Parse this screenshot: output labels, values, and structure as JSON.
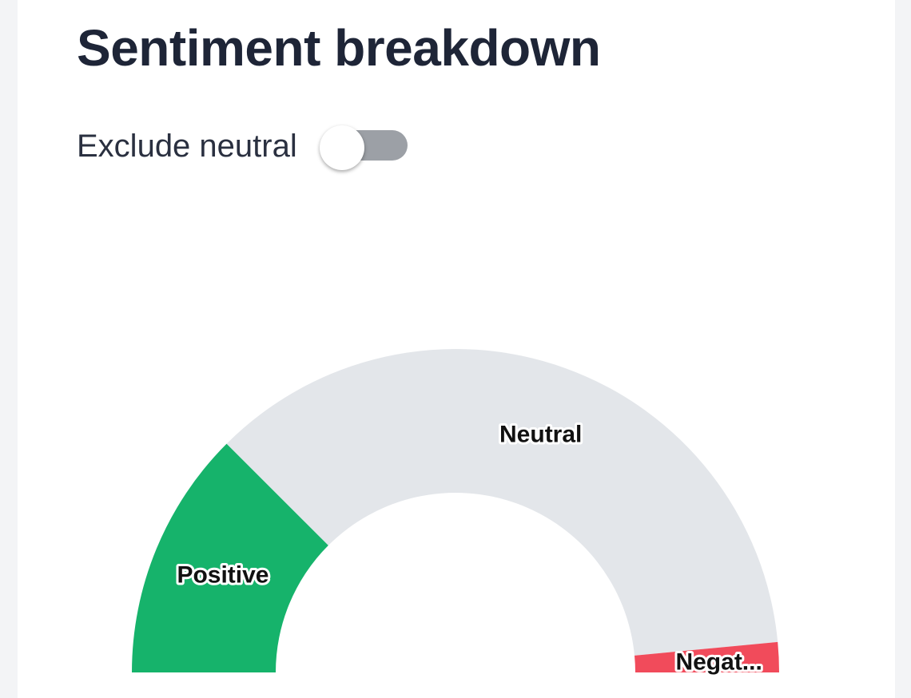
{
  "card": {
    "title": "Sentiment breakdown"
  },
  "controls": {
    "exclude_neutral_label": "Exclude neutral",
    "exclude_neutral_on": false
  },
  "chart_data": {
    "type": "pie",
    "variant": "semi-donut",
    "slices": [
      {
        "label": "Positive",
        "display_label": "Positive",
        "value": 25,
        "color": "#16b36b"
      },
      {
        "label": "Neutral",
        "display_label": "Neutral",
        "value": 72,
        "color": "#e3e6ea"
      },
      {
        "label": "Negative",
        "display_label": "Negat...",
        "value": 3,
        "color": "#f14b5b"
      }
    ],
    "legend": "none"
  }
}
